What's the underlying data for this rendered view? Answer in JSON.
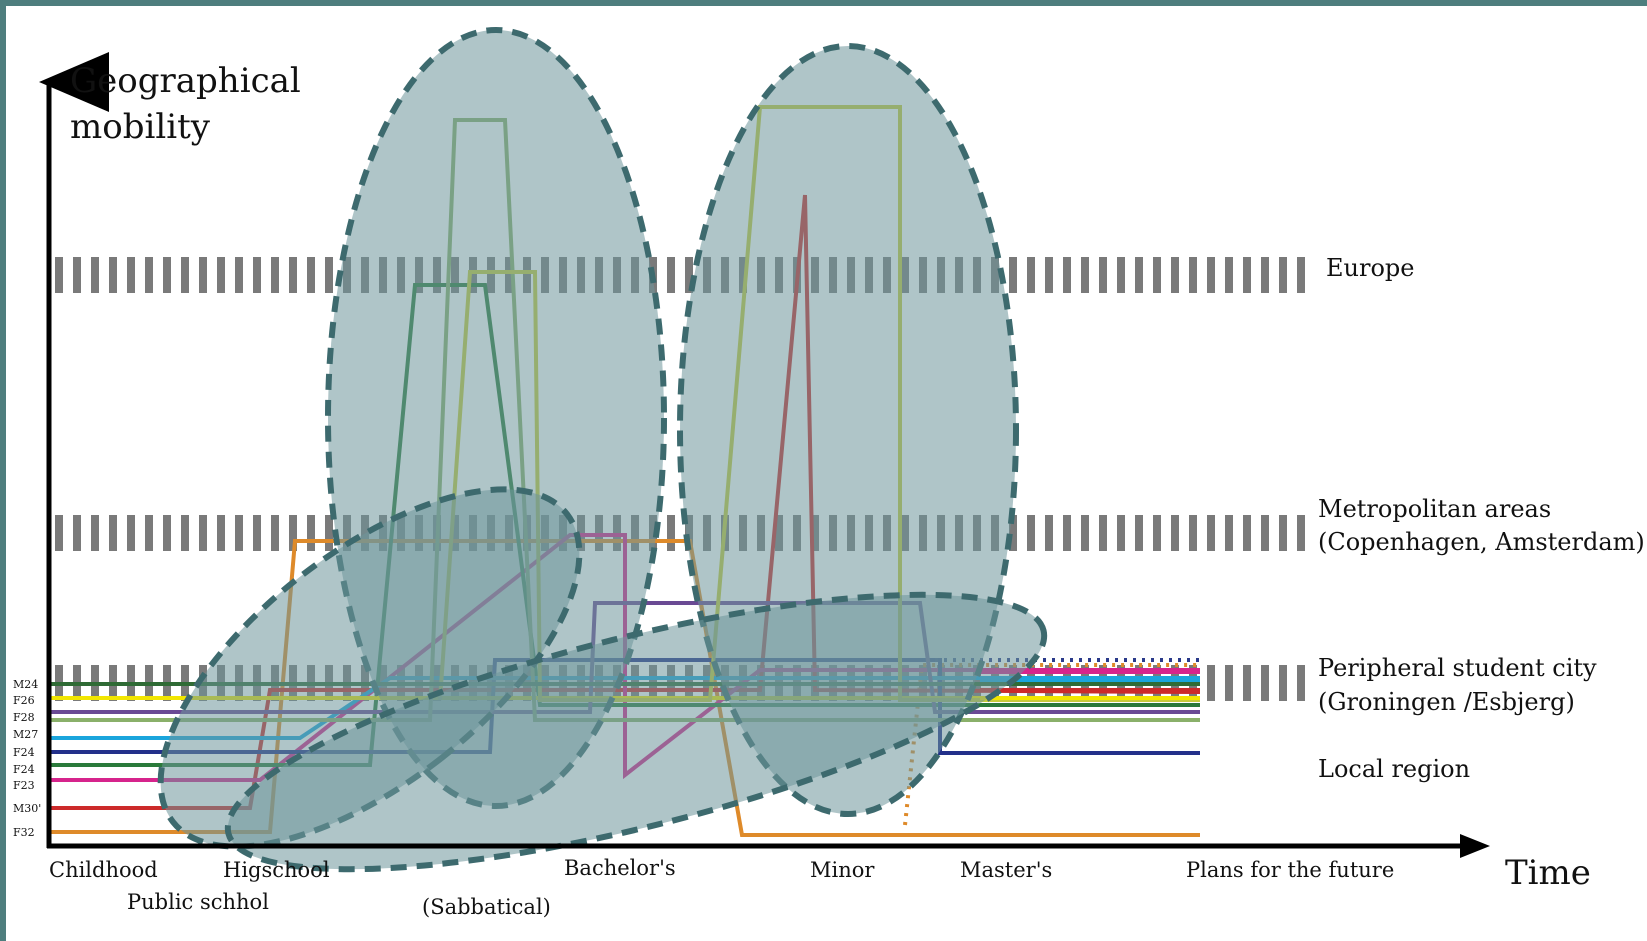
{
  "y_axis": {
    "title_line1": "Geographical",
    "title_line2": "mobility"
  },
  "x_axis": {
    "title": "Time"
  },
  "levels": [
    {
      "id": "europe",
      "label_line1": "Europe",
      "label_line2": ""
    },
    {
      "id": "metro",
      "label_line1": "Metropolitan areas",
      "label_line2": "(Copenhagen, Amsterdam)"
    },
    {
      "id": "peripheral",
      "label_line1": "Peripheral student city",
      "label_line2": "(Groningen /Esbjerg)"
    },
    {
      "id": "local",
      "label_line1": "Local region",
      "label_line2": ""
    }
  ],
  "phases": [
    {
      "id": "childhood",
      "label": "Childhood"
    },
    {
      "id": "highschool",
      "label": "Higschool"
    },
    {
      "id": "public",
      "label": "Public schhol"
    },
    {
      "id": "sabbatical",
      "label": "(Sabbatical)"
    },
    {
      "id": "bachelors",
      "label": "Bachelor's"
    },
    {
      "id": "minor",
      "label": "Minor"
    },
    {
      "id": "masters",
      "label": "Master's"
    },
    {
      "id": "future",
      "label": "Plans for the future"
    }
  ],
  "participants": [
    {
      "id": "M24",
      "label": "M24",
      "color": "#2f6b35"
    },
    {
      "id": "F26",
      "label": "F26",
      "color": "#f2e600"
    },
    {
      "id": "F28",
      "label": "F28",
      "color": "#6a4a94"
    },
    {
      "id": "M27",
      "label": "M27",
      "color": "#1aa5dc"
    },
    {
      "id": "F24a",
      "label": "F24",
      "color": "#23308a"
    },
    {
      "id": "F24b",
      "label": "F24",
      "color": "#2a7a3a"
    },
    {
      "id": "F23",
      "label": "F23",
      "color": "#d6248c"
    },
    {
      "id": "M30",
      "label": "M30'",
      "color": "#cc2a2a"
    },
    {
      "id": "F32",
      "label": "F32",
      "color": "#de8a2a"
    }
  ],
  "colors": {
    "frame": "#4e7e7e",
    "ellipse_fill": "#6e969a",
    "ellipse_stroke": "#3d6a6e",
    "band": "#7a7a7a",
    "axis": "#000000"
  }
}
